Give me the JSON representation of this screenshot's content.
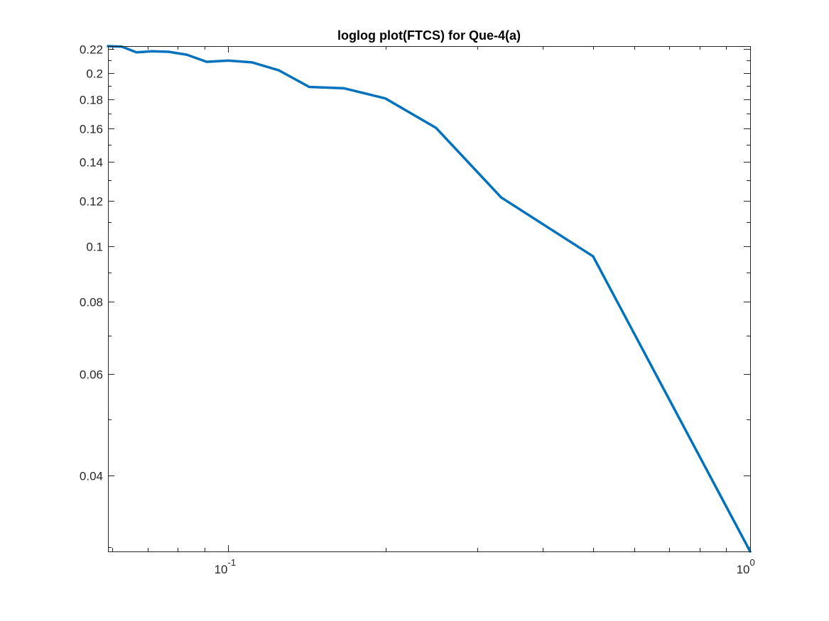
{
  "chart_data": {
    "type": "line",
    "title": "loglog plot(FTCS) for Que-4(a)",
    "xlabel": "",
    "ylabel": "",
    "xscale": "log",
    "yscale": "log",
    "xlim": [
      0.0588,
      1.0
    ],
    "ylim": [
      0.0295,
      0.2225
    ],
    "grid": false,
    "legend": "none",
    "series_color": "#0072bd",
    "xticks": [
      {
        "value": 0.1,
        "base": "10",
        "exp": "-1"
      },
      {
        "value": 1.0,
        "base": "10",
        "exp": "0"
      }
    ],
    "yticks": [
      {
        "value": 0.04,
        "label": "0.04"
      },
      {
        "value": 0.06,
        "label": "0.06"
      },
      {
        "value": 0.08,
        "label": "0.08"
      },
      {
        "value": 0.1,
        "label": "0.1"
      },
      {
        "value": 0.12,
        "label": "0.12"
      },
      {
        "value": 0.14,
        "label": "0.14"
      },
      {
        "value": 0.16,
        "label": "0.16"
      },
      {
        "value": 0.18,
        "label": "0.18"
      },
      {
        "value": 0.2,
        "label": "0.2"
      },
      {
        "value": 0.22,
        "label": "0.22"
      }
    ],
    "series": [
      {
        "x": [
          0.0588,
          0.0625,
          0.0667,
          0.0714,
          0.0769,
          0.0833,
          0.0909,
          0.1,
          0.1111,
          0.125,
          0.1429,
          0.1667,
          0.2,
          0.25,
          0.3333,
          0.5,
          1.0
        ],
        "y": [
          0.2225,
          0.222,
          0.217,
          0.218,
          0.2175,
          0.215,
          0.209,
          0.21,
          0.2085,
          0.202,
          0.189,
          0.188,
          0.1805,
          0.1605,
          0.1215,
          0.096,
          0.0295
        ]
      }
    ]
  }
}
